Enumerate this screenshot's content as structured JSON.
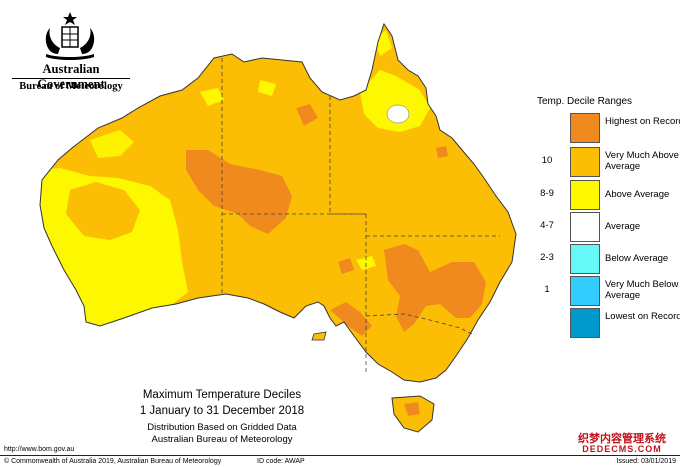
{
  "header": {
    "government": "Australian Government",
    "bureau": "Bureau of Meteorology",
    "crest_icon": "coat-of-arms-icon"
  },
  "legend": {
    "title": "Temp. Decile Ranges",
    "items": [
      {
        "code": "",
        "label": "Highest on Record",
        "color": "#f08a1e"
      },
      {
        "code": "10",
        "label": "Very Much Above Average",
        "color": "#fbbe05"
      },
      {
        "code": "8-9",
        "label": "Above Average",
        "color": "#fdf800"
      },
      {
        "code": "4-7",
        "label": "Average",
        "color": "#ffffff"
      },
      {
        "code": "2-3",
        "label": "Below Average",
        "color": "#66f7f7"
      },
      {
        "code": "1",
        "label": "Very Much Below Average",
        "color": "#33ccff"
      },
      {
        "code": "",
        "label": "Lowest on Record",
        "color": "#0099cc"
      }
    ]
  },
  "map": {
    "title": "Maximum Temperature Deciles",
    "period": "1 January to 31 December 2018",
    "note": "Distribution Based on Gridded Data",
    "source": "Australian Bureau of Meteorology"
  },
  "footer": {
    "url": "http://www.bom.gov.au",
    "copyright": "© Commonwealth of Australia 2019, Australian Bureau of Meteorology",
    "id_code": "ID code: AWAP",
    "issued": "Issued: 03/01/2019"
  },
  "watermark": {
    "text": "织梦内容管理系统",
    "site": "DEDECMS.COM"
  }
}
